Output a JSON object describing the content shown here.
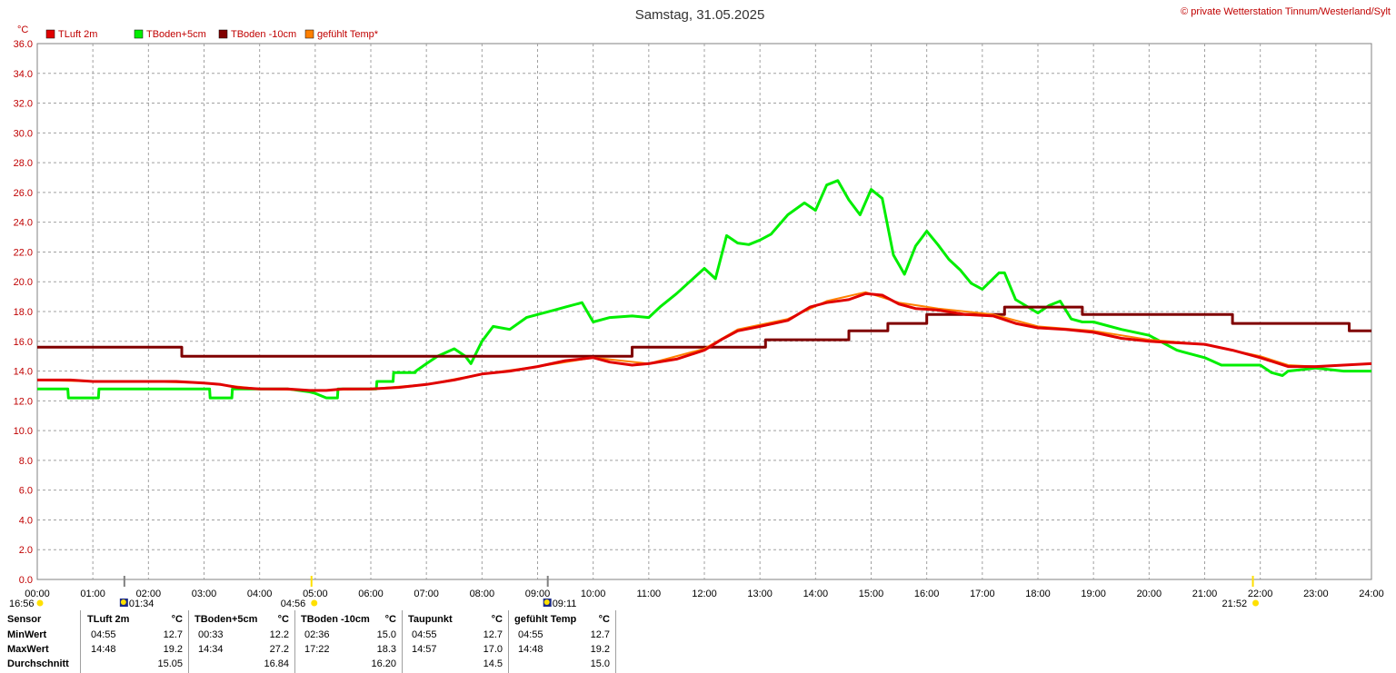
{
  "title": "Samstag, 31.05.2025",
  "copyright": "© private Wetterstation Tinnum/Westerland/Sylt",
  "unit_label": "°C",
  "colors": {
    "tluft": "#e00000",
    "tboden5": "#00ee00",
    "tboden10": "#800000",
    "gefuehlt": "#ff8000",
    "axis_text": "#c00000",
    "sun": "#ffe000"
  },
  "legend": [
    {
      "label": "TLuft 2m",
      "color": "#e00000"
    },
    {
      "label": "TBoden+5cm",
      "color": "#00ee00"
    },
    {
      "label": "TBoden -10cm",
      "color": "#800000"
    },
    {
      "label": "gefühlt Temp*",
      "color": "#ff8000"
    }
  ],
  "events": [
    {
      "time": "16:56",
      "kind": "sun-icon",
      "hour": 0
    },
    {
      "time": "01:34",
      "kind": "moon-icon",
      "hour": 1.567
    },
    {
      "time": "04:56",
      "kind": "sun-icon",
      "hour": 4.933
    },
    {
      "time": "09:11",
      "kind": "moon-icon",
      "hour": 9.183
    },
    {
      "time": "21:52",
      "kind": "sun-icon",
      "hour": 21.867
    }
  ],
  "chart_data": {
    "type": "line",
    "title": "Samstag, 31.05.2025",
    "xlabel": "",
    "ylabel": "°C",
    "xlim": [
      0,
      24
    ],
    "ylim": [
      0,
      36
    ],
    "grid": true,
    "legend_position": "top-left",
    "x_ticks": [
      "00:00",
      "01:00",
      "02:00",
      "03:00",
      "04:00",
      "05:00",
      "06:00",
      "07:00",
      "08:00",
      "09:00",
      "10:00",
      "11:00",
      "12:00",
      "13:00",
      "14:00",
      "15:00",
      "16:00",
      "17:00",
      "18:00",
      "19:00",
      "20:00",
      "21:00",
      "22:00",
      "23:00",
      "24:00"
    ],
    "y_ticks": [
      "0.0",
      "2.0",
      "4.0",
      "6.0",
      "8.0",
      "10.0",
      "12.0",
      "14.0",
      "16.0",
      "18.0",
      "20.0",
      "22.0",
      "24.0",
      "26.0",
      "28.0",
      "30.0",
      "32.0",
      "34.0",
      "36.0"
    ],
    "series": [
      {
        "name": "TLuft 2m",
        "color": "#e00000",
        "x": [
          0,
          0.6,
          1,
          2,
          2.5,
          3,
          3.3,
          3.6,
          4,
          4.5,
          4.9,
          5.2,
          5.5,
          6,
          6.5,
          7,
          7.5,
          8,
          8.5,
          9,
          9.5,
          10,
          10.3,
          10.7,
          11,
          11.5,
          12,
          12.3,
          12.6,
          13,
          13.5,
          13.9,
          14.2,
          14.6,
          14.9,
          15.2,
          15.5,
          15.8,
          16.2,
          16.7,
          17.2,
          17.6,
          18,
          18.5,
          19,
          19.5,
          20,
          20.5,
          21,
          21.5,
          22,
          22.5,
          23,
          23.5,
          24
        ],
        "y": [
          13.4,
          13.4,
          13.3,
          13.3,
          13.3,
          13.2,
          13.1,
          12.9,
          12.8,
          12.8,
          12.7,
          12.7,
          12.8,
          12.8,
          12.9,
          13.1,
          13.4,
          13.8,
          14.0,
          14.3,
          14.7,
          14.9,
          14.6,
          14.4,
          14.5,
          14.8,
          15.4,
          16.1,
          16.7,
          17.0,
          17.4,
          18.3,
          18.6,
          18.8,
          19.2,
          19.1,
          18.5,
          18.2,
          18.1,
          17.8,
          17.7,
          17.2,
          16.9,
          16.8,
          16.6,
          16.2,
          16.0,
          15.9,
          15.8,
          15.4,
          14.9,
          14.3,
          14.3,
          14.4,
          14.5
        ]
      },
      {
        "name": "TBoden+5cm",
        "color": "#00ee00",
        "x": [
          0,
          0.55,
          0.56,
          1.1,
          1.11,
          2.5,
          3.1,
          3.11,
          3.5,
          3.51,
          4,
          4.5,
          4.9,
          5,
          5.2,
          5.4,
          5.41,
          6,
          6.1,
          6.11,
          6.4,
          6.41,
          6.8,
          6.81,
          7,
          7.2,
          7.5,
          7.7,
          7.8,
          8,
          8.2,
          8.5,
          8.8,
          9,
          9.3,
          9.5,
          9.8,
          10,
          10.3,
          10.7,
          11,
          11.2,
          11.5,
          12,
          12.2,
          12.4,
          12.6,
          12.8,
          13,
          13.2,
          13.5,
          13.8,
          14,
          14.2,
          14.4,
          14.6,
          14.8,
          15,
          15.2,
          15.4,
          15.6,
          15.8,
          16,
          16.2,
          16.4,
          16.6,
          16.8,
          17,
          17.3,
          17.4,
          17.6,
          18,
          18.2,
          18.4,
          18.6,
          18.8,
          19,
          19.5,
          20,
          20.5,
          20.6,
          21,
          21.3,
          21.31,
          22,
          22.2,
          22.4,
          22.5,
          23,
          23.5,
          24
        ],
        "y": [
          12.8,
          12.8,
          12.2,
          12.2,
          12.8,
          12.8,
          12.8,
          12.2,
          12.2,
          12.8,
          12.8,
          12.8,
          12.6,
          12.5,
          12.2,
          12.2,
          12.8,
          12.8,
          12.8,
          13.3,
          13.3,
          13.9,
          13.9,
          14.0,
          14.5,
          15.0,
          15.5,
          15.0,
          14.5,
          16.0,
          17.0,
          16.8,
          17.6,
          17.8,
          18.1,
          18.3,
          18.6,
          17.3,
          17.6,
          17.7,
          17.6,
          18.3,
          19.2,
          20.9,
          20.2,
          23.1,
          22.6,
          22.5,
          22.8,
          23.2,
          24.5,
          25.3,
          24.8,
          26.5,
          26.8,
          25.5,
          24.5,
          26.2,
          25.6,
          21.8,
          20.5,
          22.4,
          23.4,
          22.5,
          21.5,
          20.8,
          19.9,
          19.5,
          20.6,
          20.6,
          18.8,
          17.9,
          18.4,
          18.7,
          17.5,
          17.3,
          17.3,
          16.8,
          16.4,
          15.4,
          15.3,
          14.9,
          14.4,
          14.4,
          14.4,
          13.9,
          13.7,
          14.0,
          14.2,
          14.0,
          14.0
        ]
      },
      {
        "name": "TBoden -10cm",
        "color": "#800000",
        "x": [
          0,
          2.6,
          2.6,
          10.7,
          10.7,
          13.1,
          13.1,
          14.6,
          14.6,
          15.3,
          15.3,
          16.0,
          16.0,
          17.4,
          17.4,
          18.8,
          18.8,
          21.5,
          21.5,
          23.6,
          23.6,
          24
        ],
        "y": [
          15.6,
          15.6,
          15.0,
          15.0,
          15.6,
          15.6,
          16.1,
          16.1,
          16.7,
          16.7,
          17.2,
          17.2,
          17.8,
          17.8,
          18.3,
          18.3,
          17.8,
          17.8,
          17.2,
          17.2,
          16.7,
          16.7
        ]
      },
      {
        "name": "gefühlt Temp*",
        "color": "#ff8000",
        "x": [
          0,
          1,
          2,
          3,
          4,
          5,
          6,
          7,
          8,
          9,
          10,
          11,
          12,
          12.6,
          13.5,
          14.2,
          14.9,
          15.5,
          16.2,
          17.2,
          18,
          19,
          20,
          21,
          22,
          22.5,
          23,
          24
        ],
        "y": [
          13.4,
          13.3,
          13.3,
          13.2,
          12.8,
          12.7,
          12.8,
          13.1,
          13.8,
          14.3,
          14.9,
          14.5,
          15.5,
          16.8,
          17.5,
          18.7,
          19.3,
          18.6,
          18.2,
          17.8,
          17.0,
          16.7,
          16.1,
          15.8,
          15.0,
          14.4,
          14.3,
          14.5
        ]
      }
    ]
  },
  "stats_table": {
    "sensor_header": "Sensor",
    "row_labels": [
      "MinWert",
      "MaxWert",
      "Durchschnitt"
    ],
    "columns": [
      {
        "name": "TLuft 2m",
        "unit": "°C",
        "min_time": "04:55",
        "min": "12.7",
        "max_time": "14:48",
        "max": "19.2",
        "avg": "15.05"
      },
      {
        "name": "TBoden+5cm",
        "unit": "°C",
        "min_time": "00:33",
        "min": "12.2",
        "max_time": "14:34",
        "max": "27.2",
        "avg": "16.84"
      },
      {
        "name": "TBoden -10cm",
        "unit": "°C",
        "min_time": "02:36",
        "min": "15.0",
        "max_time": "17:22",
        "max": "18.3",
        "avg": "16.20"
      },
      {
        "name": "Taupunkt",
        "unit": "°C",
        "min_time": "04:55",
        "min": "12.7",
        "max_time": "14:57",
        "max": "17.0",
        "avg": "14.5"
      },
      {
        "name": "gefühlt Temp",
        "unit": "°C",
        "min_time": "04:55",
        "min": "12.7",
        "max_time": "14:48",
        "max": "19.2",
        "avg": "15.0"
      }
    ]
  }
}
